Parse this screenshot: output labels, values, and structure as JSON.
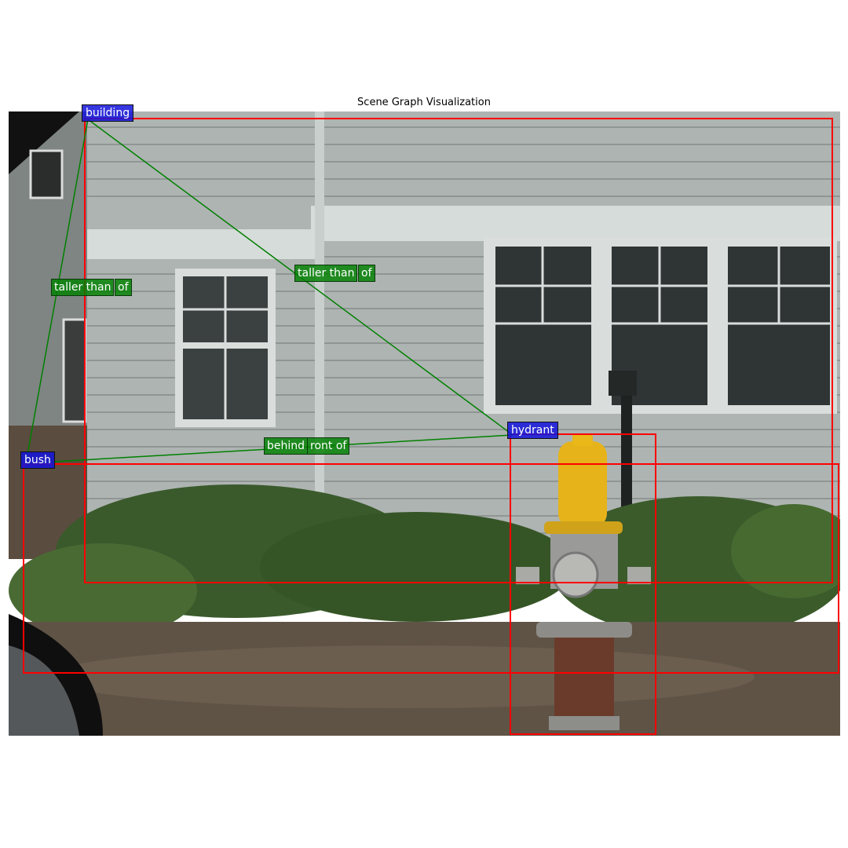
{
  "title": "Scene Graph Visualization",
  "nodes": [
    {
      "key": "building",
      "label": "building"
    },
    {
      "key": "bush",
      "label": "bush"
    },
    {
      "key": "hydrant",
      "label": "hydrant"
    }
  ],
  "edges": [
    {
      "from": "building",
      "to": "bush",
      "label": "taller than",
      "label2": "of"
    },
    {
      "from": "building",
      "to": "hydrant",
      "label": "taller than",
      "label2": "of"
    },
    {
      "from": "bush",
      "to": "hydrant",
      "label": "behind",
      "label2": "ront of"
    }
  ],
  "colors": {
    "box": "#ff0000",
    "edge": "#008000",
    "node_label_bg": "#1414dc",
    "edge_label_bg": "#008000"
  }
}
